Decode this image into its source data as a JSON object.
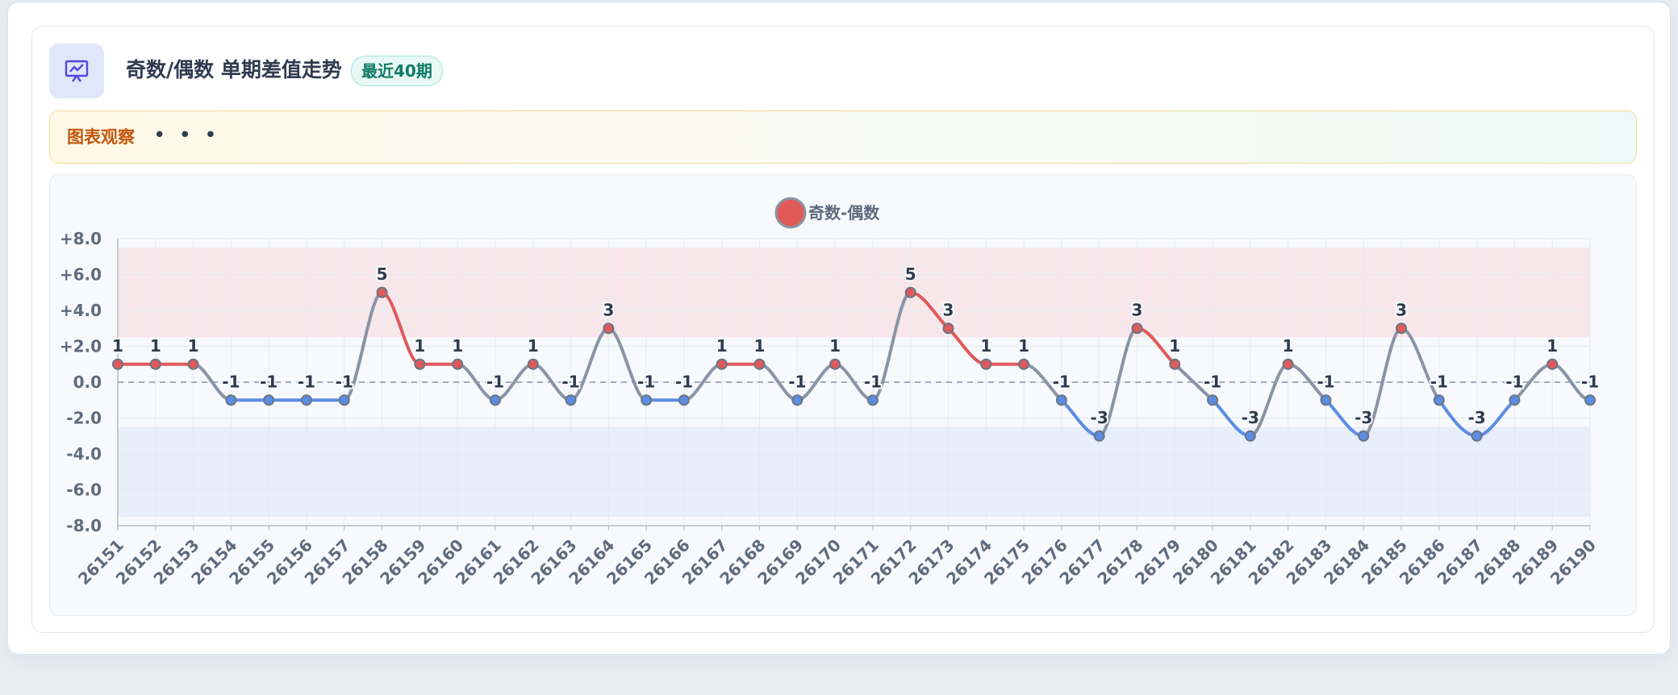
{
  "card": {
    "title": "奇数/偶数 单期差值走势",
    "badge": "最近40期",
    "insight_label": "图表观察",
    "insight_more": "• • •",
    "icon": "presentation-chart-icon"
  },
  "colors": {
    "positive": "#e05a5a",
    "negative": "#5b8de3",
    "neutral": "#8a94a6",
    "positive_band": "#f7e7eb",
    "negative_band": "#e8eefa",
    "accent": "#0f7b67"
  },
  "chart_data": {
    "type": "line",
    "legend": [
      "奇数-偶数"
    ],
    "legend_position": "top",
    "x": [
      "26151",
      "26152",
      "26153",
      "26154",
      "26155",
      "26156",
      "26157",
      "26158",
      "26159",
      "26160",
      "26161",
      "26162",
      "26163",
      "26164",
      "26165",
      "26166",
      "26167",
      "26168",
      "26169",
      "26170",
      "26171",
      "26172",
      "26173",
      "26174",
      "26175",
      "26176",
      "26177",
      "26178",
      "26179",
      "26180",
      "26181",
      "26182",
      "26183",
      "26184",
      "26185",
      "26186",
      "26187",
      "26188",
      "26189",
      "26190"
    ],
    "series": [
      {
        "name": "奇数-偶数",
        "values": [
          1,
          1,
          1,
          -1,
          -1,
          -1,
          -1,
          5,
          1,
          1,
          -1,
          1,
          -1,
          3,
          -1,
          -1,
          1,
          1,
          -1,
          1,
          -1,
          5,
          3,
          1,
          1,
          -1,
          -3,
          3,
          1,
          -1,
          -3,
          1,
          -1,
          -3,
          3,
          -1,
          -3,
          -1,
          1,
          -1
        ]
      }
    ],
    "ylim": [
      -8,
      8
    ],
    "yticks": [
      "+8.0",
      "+6.0",
      "+4.0",
      "+2.0",
      "0.0",
      "-2.0",
      "-4.0",
      "-6.0",
      "-8.0"
    ],
    "yticks_values": [
      8,
      6,
      4,
      2,
      0,
      -2,
      -4,
      -6,
      -8
    ],
    "bands": [
      {
        "from": 2.5,
        "to": 7.5,
        "label": "positive"
      },
      {
        "from": -7.5,
        "to": -2.5,
        "label": "negative"
      }
    ],
    "grid": true,
    "zero_line": "dashed"
  }
}
